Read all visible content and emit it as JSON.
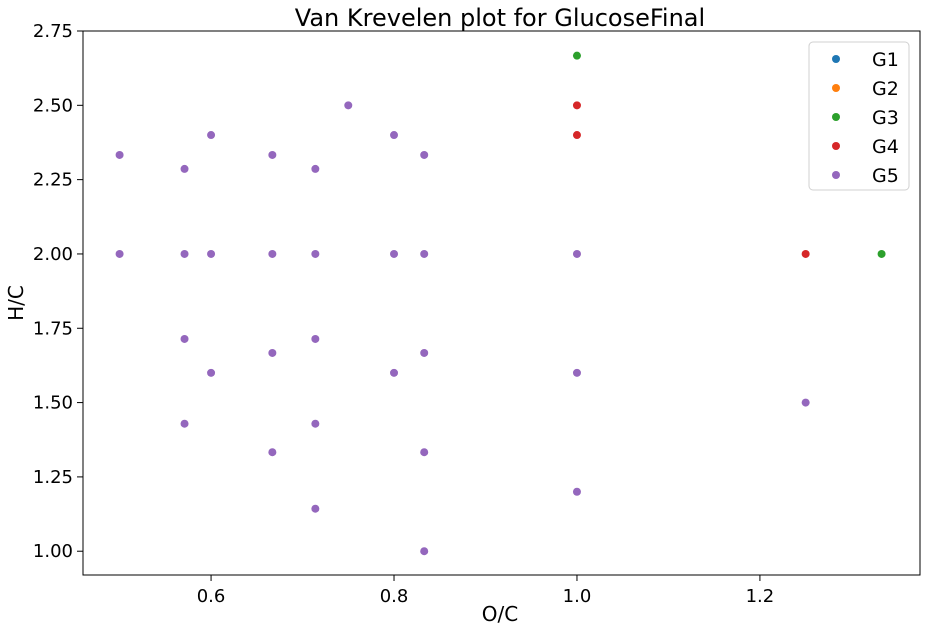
{
  "chart_data": {
    "type": "scatter",
    "title": "Van Krevelen plot for GlucoseFinal",
    "xlabel": "O/C",
    "ylabel": "H/C",
    "xlim": [
      0.46,
      1.375
    ],
    "ylim": [
      0.92,
      2.75
    ],
    "x_ticks": [
      0.6,
      0.8,
      1.0,
      1.2
    ],
    "x_tick_labels": [
      "0.6",
      "0.8",
      "1.0",
      "1.2"
    ],
    "y_ticks": [
      1.0,
      1.25,
      1.5,
      1.75,
      2.0,
      2.25,
      2.5,
      2.75
    ],
    "y_tick_labels": [
      "1.00",
      "1.25",
      "1.50",
      "1.75",
      "2.00",
      "2.25",
      "2.50",
      "2.75"
    ],
    "grid": false,
    "legend_position": "top-right",
    "series": [
      {
        "name": "G1",
        "color": "#1f77b4",
        "points": []
      },
      {
        "name": "G2",
        "color": "#ff7f0e",
        "points": []
      },
      {
        "name": "G3",
        "color": "#2ca02c",
        "points": [
          [
            1.0,
            2.667
          ],
          [
            1.333,
            2.0
          ]
        ]
      },
      {
        "name": "G4",
        "color": "#d62728",
        "points": [
          [
            1.0,
            2.5
          ],
          [
            1.0,
            2.4
          ],
          [
            1.25,
            2.0
          ]
        ]
      },
      {
        "name": "G5",
        "color": "#9467bd",
        "points": [
          [
            0.5,
            2.333
          ],
          [
            0.5,
            2.0
          ],
          [
            0.571,
            2.286
          ],
          [
            0.571,
            2.0
          ],
          [
            0.571,
            1.714
          ],
          [
            0.571,
            1.429
          ],
          [
            0.6,
            2.4
          ],
          [
            0.6,
            2.0
          ],
          [
            0.6,
            1.6
          ],
          [
            0.667,
            2.333
          ],
          [
            0.667,
            2.0
          ],
          [
            0.667,
            1.667
          ],
          [
            0.667,
            1.333
          ],
          [
            0.714,
            2.286
          ],
          [
            0.714,
            2.0
          ],
          [
            0.714,
            1.714
          ],
          [
            0.714,
            1.429
          ],
          [
            0.714,
            1.143
          ],
          [
            0.75,
            2.5
          ],
          [
            0.8,
            2.4
          ],
          [
            0.8,
            2.0
          ],
          [
            0.8,
            1.6
          ],
          [
            0.833,
            2.333
          ],
          [
            0.833,
            2.0
          ],
          [
            0.833,
            1.667
          ],
          [
            0.833,
            1.333
          ],
          [
            0.833,
            1.0
          ],
          [
            1.0,
            2.0
          ],
          [
            1.0,
            1.6
          ],
          [
            1.0,
            1.2
          ],
          [
            1.25,
            1.5
          ]
        ]
      }
    ]
  }
}
